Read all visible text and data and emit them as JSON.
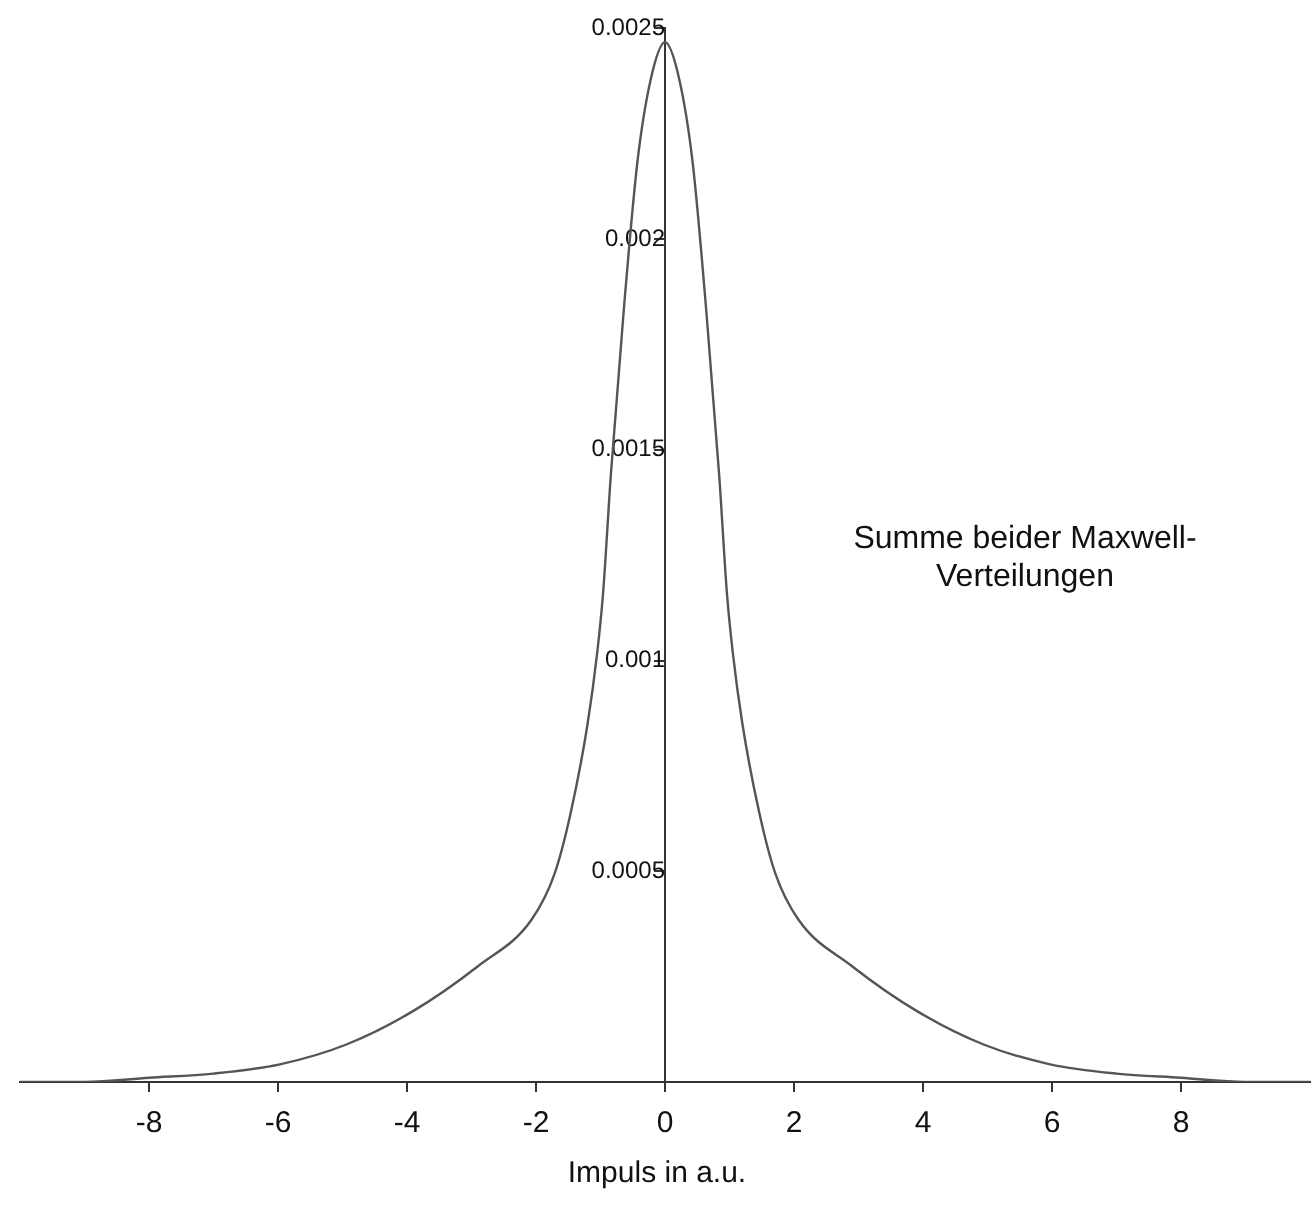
{
  "chart_data": {
    "type": "line",
    "xlabel": "Impuls in a.u.",
    "annotations": [
      "Summe beider Maxwell-Verteilungen"
    ],
    "series": [
      {
        "color": "#555555",
        "x": [
          -10,
          -9,
          -8,
          -7,
          -5.97,
          -4.94,
          -3.92,
          -2.89,
          -2.07,
          -1.71,
          -1.46,
          -1.2,
          -1.05,
          -0.96,
          -0.84,
          -0.64,
          -0.43,
          -0.22,
          0,
          0.22,
          0.43,
          0.64,
          0.84,
          0.96,
          1.05,
          1.2,
          1.46,
          1.71,
          2.07,
          2.89,
          3.92,
          4.94,
          5.97,
          7,
          8,
          9,
          10
        ],
        "values": [
          0,
          0,
          1e-05,
          2e-05,
          4.2e-05,
          8.9e-05,
          0.000167,
          0.000276,
          0.000385,
          0.000495,
          0.00064,
          0.00085,
          0.00102,
          0.00116,
          0.00144,
          0.00183,
          0.00218,
          0.00238,
          0.002467,
          0.00238,
          0.00218,
          0.00183,
          0.00144,
          0.00116,
          0.00102,
          0.00085,
          0.00064,
          0.000495,
          0.000385,
          0.000276,
          0.000167,
          8.9e-05,
          4.2e-05,
          2e-05,
          1e-05,
          0,
          0
        ]
      }
    ],
    "xlim": [
      -10,
      10
    ],
    "xticks": [
      -8,
      -6,
      -4,
      -2,
      0,
      2,
      4,
      6,
      8
    ],
    "ylim": [
      0,
      0.0025
    ],
    "yticks": [
      0.0005,
      0.001,
      0.0015,
      0.002,
      0.0025
    ],
    "grid": false,
    "legend": false,
    "marker": "none",
    "line_style": "solid"
  }
}
